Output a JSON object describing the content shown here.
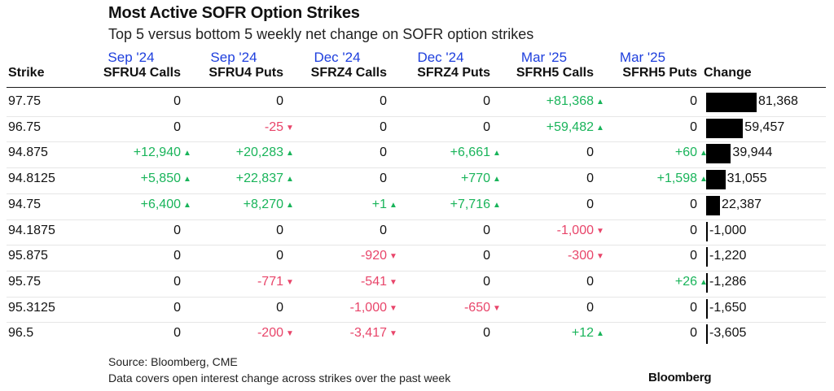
{
  "chart_data": {
    "type": "table",
    "title": "Most Active SOFR Option Strikes",
    "subtitle": "Top 5 versus bottom 5 weekly net change on SOFR option strikes",
    "strike_header": "Strike",
    "change_header": "Change",
    "columns": [
      {
        "month": "Sep '24",
        "code": "SFRU4 Calls"
      },
      {
        "month": "Sep '24",
        "code": "SFRU4 Puts"
      },
      {
        "month": "Dec '24",
        "code": "SFRZ4 Calls"
      },
      {
        "month": "Dec '24",
        "code": "SFRZ4 Puts"
      },
      {
        "month": "Mar '25",
        "code": "SFRH5 Calls"
      },
      {
        "month": "Mar '25",
        "code": "SFRH5 Puts"
      }
    ],
    "rows": [
      {
        "strike": "97.75",
        "cells": [
          "0",
          "0",
          "0",
          "0",
          "+81,368",
          "0"
        ],
        "change": 81368,
        "change_label": "81,368"
      },
      {
        "strike": "96.75",
        "cells": [
          "0",
          "-25",
          "0",
          "0",
          "+59,482",
          "0"
        ],
        "change": 59457,
        "change_label": "59,457"
      },
      {
        "strike": "94.875",
        "cells": [
          "+12,940",
          "+20,283",
          "0",
          "+6,661",
          "0",
          "+60"
        ],
        "change": 39944,
        "change_label": "39,944"
      },
      {
        "strike": "94.8125",
        "cells": [
          "+5,850",
          "+22,837",
          "0",
          "+770",
          "0",
          "+1,598"
        ],
        "change": 31055,
        "change_label": "31,055"
      },
      {
        "strike": "94.75",
        "cells": [
          "+6,400",
          "+8,270",
          "+1",
          "+7,716",
          "0",
          "0"
        ],
        "change": 22387,
        "change_label": "22,387"
      },
      {
        "strike": "94.1875",
        "cells": [
          "0",
          "0",
          "0",
          "0",
          "-1,000",
          "0"
        ],
        "change": -1000,
        "change_label": "-1,000"
      },
      {
        "strike": "95.875",
        "cells": [
          "0",
          "0",
          "-920",
          "0",
          "-300",
          "0"
        ],
        "change": -1220,
        "change_label": "-1,220"
      },
      {
        "strike": "95.75",
        "cells": [
          "0",
          "-771",
          "-541",
          "0",
          "0",
          "+26"
        ],
        "change": -1286,
        "change_label": "-1,286"
      },
      {
        "strike": "95.3125",
        "cells": [
          "0",
          "0",
          "-1,000",
          "-650",
          "0",
          "0"
        ],
        "change": -1650,
        "change_label": "-1,650"
      },
      {
        "strike": "96.5",
        "cells": [
          "0",
          "-200",
          "-3,417",
          "0",
          "+12",
          "0"
        ],
        "change": -3605,
        "change_label": "-3,605"
      }
    ],
    "bar_color": "#000000",
    "positive_color": "#19b45a",
    "negative_color": "#e8456a",
    "header_month_color": "#1e3fdd"
  },
  "footer": {
    "source": "Source: Bloomberg, CME",
    "note": "Data covers open interest change across strikes over the past week",
    "brand": "Bloomberg"
  }
}
